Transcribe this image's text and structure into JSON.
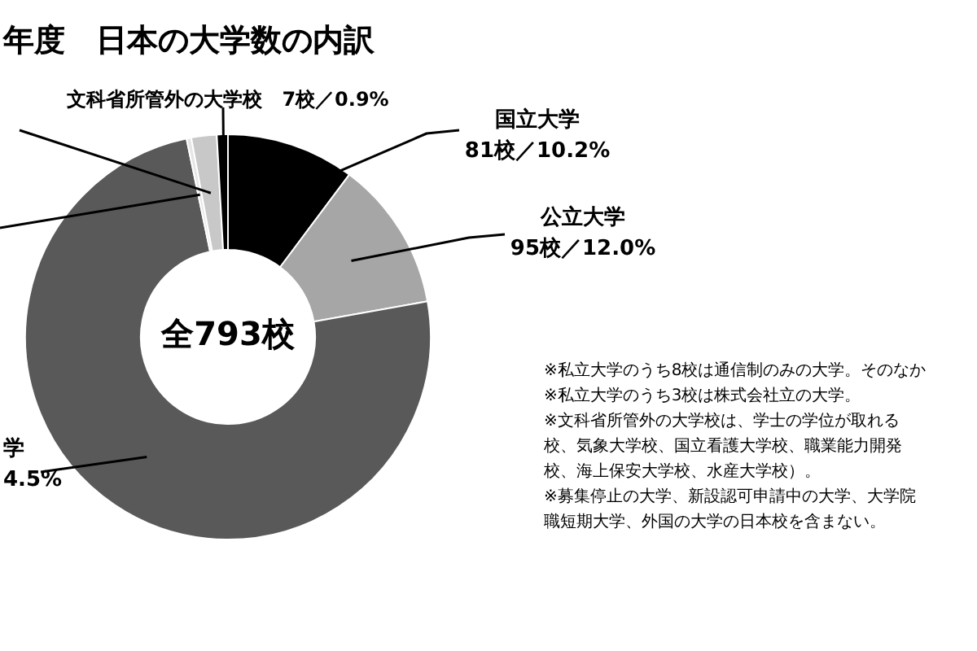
{
  "chart_data": {
    "type": "donut",
    "title": "年度　日本の大学数の内訳",
    "categories": [
      "国立大学",
      "公立大学",
      null,
      null,
      null,
      "文科省所管外の大学校"
    ],
    "values": [
      81,
      95,
      591,
      3,
      16,
      7
    ],
    "colors": [
      "#000000",
      "#a6a6a6",
      "#595959",
      "#e6e6e6",
      "#c8c8c8",
      "#000000"
    ],
    "value_labels": [
      "81校／10.2%",
      "95校／12.0%",
      null,
      null,
      null,
      "7校／0.9%"
    ],
    "annotations": [
      "全793校",
      "学",
      "4.5%",
      "※私立大学のうち8校は通信制のみの大学。そのなか",
      "※私立大学のうち3校は株式会社立の大学。",
      "※文科省所管外の大学校は、学士の学位が取れる",
      "校、気象大学校、国立看護大学校、職業能力開発",
      "校、海上保安大学校、水産大学校）。",
      "※募集停止の大学、新設認可申請中の大学、大学院",
      "職短期大学、外国の大学の日本校を含まない。"
    ],
    "legend": false
  }
}
